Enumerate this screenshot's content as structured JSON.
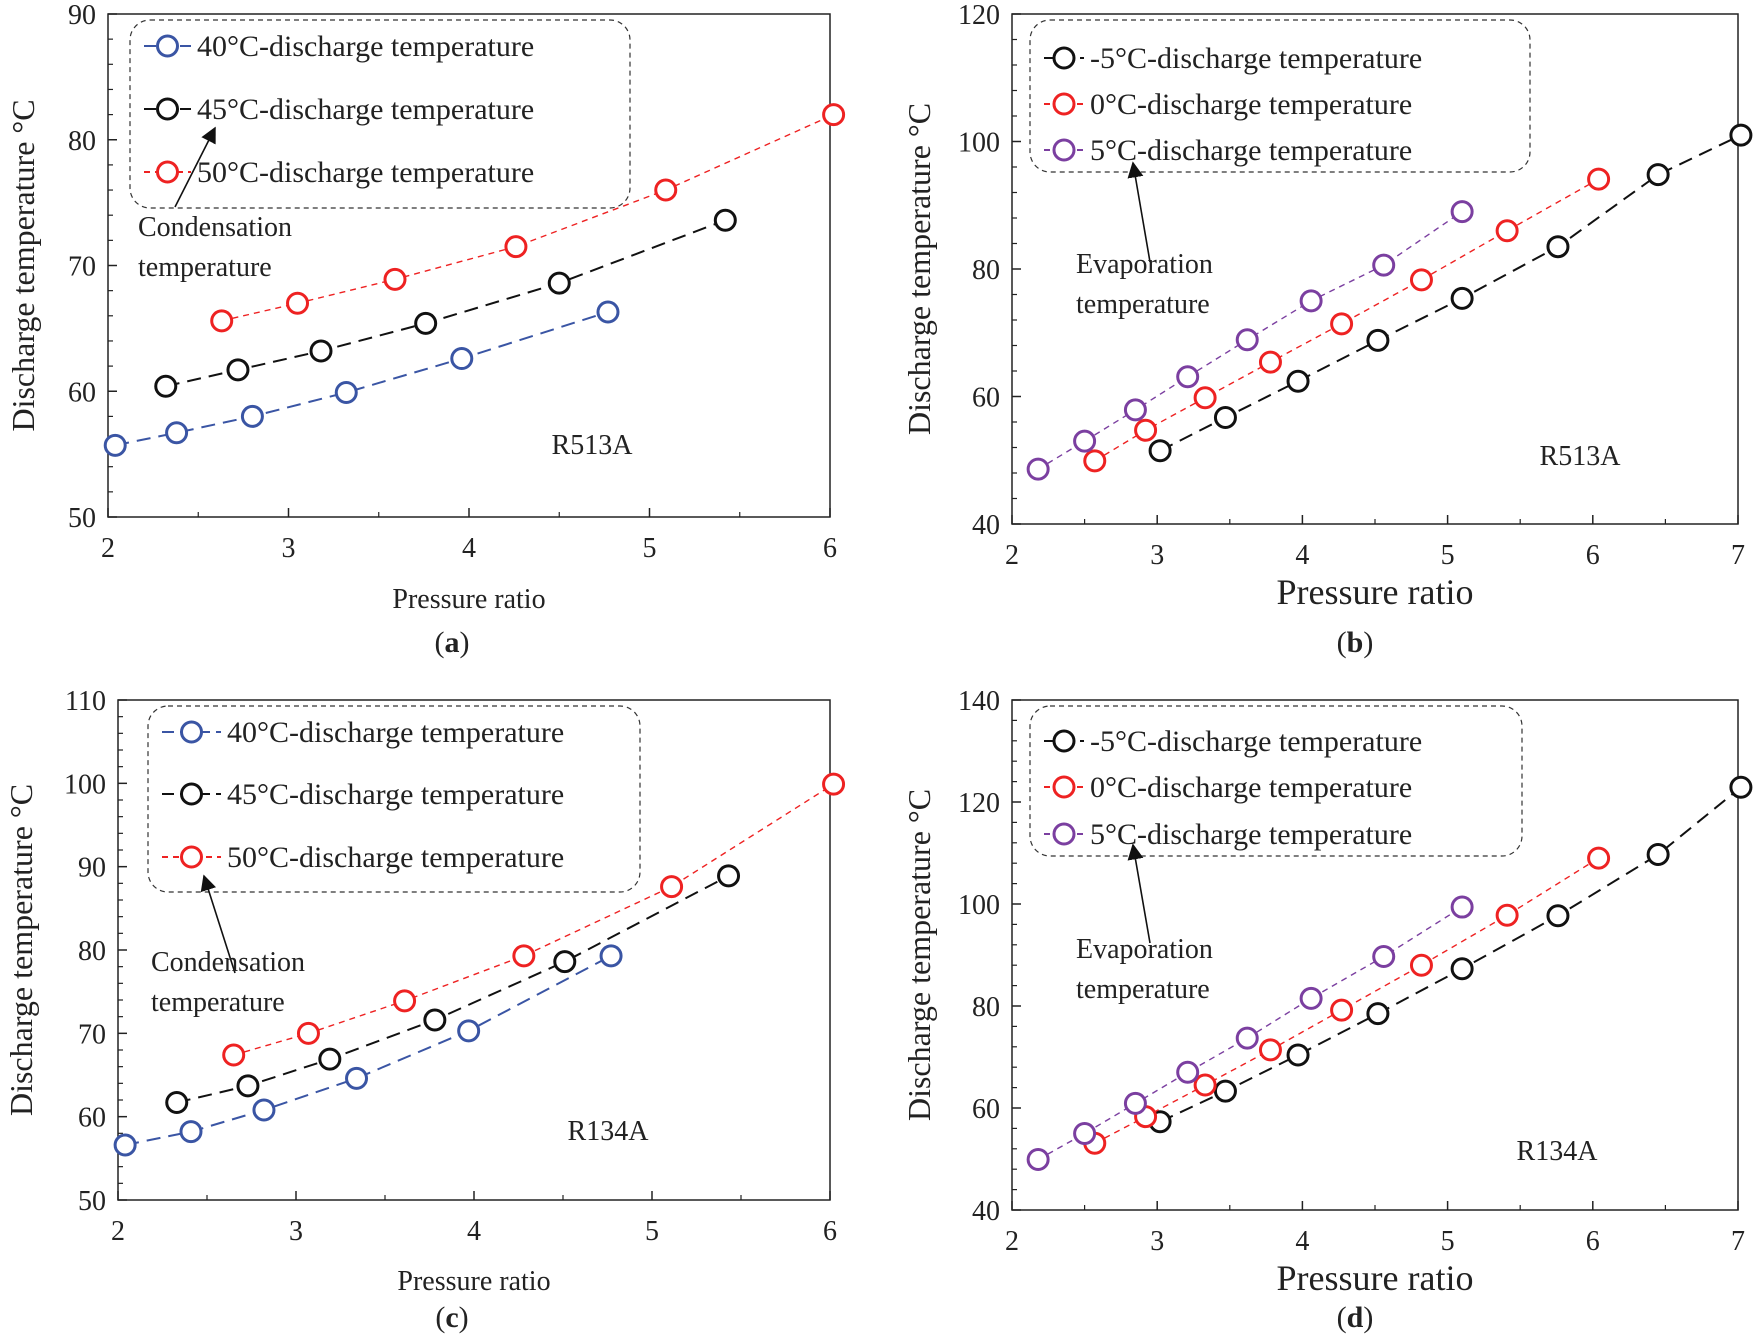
{
  "chart_data": [
    {
      "id": "a",
      "type": "line",
      "panel_label": "a",
      "xlabel": "Pressure ratio",
      "ylabel": "Discharge temperature °C",
      "xlim": [
        2,
        6
      ],
      "ylim": [
        50,
        90
      ],
      "xticks": [
        2,
        3,
        4,
        5,
        6
      ],
      "yticks": [
        50,
        60,
        70,
        80,
        90
      ],
      "fluid": "R513A",
      "note": [
        "Condensation",
        "temperature"
      ],
      "legend_placement": "top-left",
      "series": [
        {
          "name": "40°C-discharge temperature",
          "color": "#3a55a4",
          "dash": "long",
          "x": [
            2.04,
            2.38,
            2.8,
            3.32,
            3.96,
            4.77
          ],
          "y": [
            55.7,
            56.7,
            58.0,
            59.9,
            62.6,
            66.3
          ]
        },
        {
          "name": "45°C-discharge temperature",
          "color": "#111111",
          "dash": "long",
          "x": [
            2.32,
            2.72,
            3.18,
            3.76,
            4.5,
            5.42
          ],
          "y": [
            60.4,
            61.7,
            63.2,
            65.4,
            68.6,
            73.6
          ]
        },
        {
          "name": "50°C-discharge temperature",
          "color": "#ee2222",
          "dash": "short",
          "x": [
            2.63,
            3.05,
            3.59,
            4.26,
            5.09,
            6.02
          ],
          "y": [
            65.6,
            67.0,
            68.9,
            71.5,
            76.0,
            82.0
          ]
        }
      ]
    },
    {
      "id": "b",
      "type": "line",
      "panel_label": "b",
      "xlabel": "Pressure ratio",
      "ylabel": "Discharge temperature °C",
      "xlim": [
        2,
        7
      ],
      "ylim": [
        40,
        120
      ],
      "xticks": [
        2,
        3,
        4,
        5,
        6,
        7
      ],
      "yticks": [
        40,
        60,
        80,
        100,
        120
      ],
      "fluid": "R513A",
      "note": [
        "Evaporation",
        "temperature"
      ],
      "legend_placement": "top-left",
      "series": [
        {
          "name": "-5°C-discharge temperature",
          "color": "#111111",
          "dash": "long",
          "x": [
            3.02,
            3.47,
            3.97,
            4.52,
            5.1,
            5.76,
            6.45,
            7.02
          ],
          "y": [
            51.5,
            56.7,
            62.4,
            68.8,
            75.4,
            83.5,
            94.8,
            101.0
          ]
        },
        {
          "name": "0°C-discharge temperature",
          "color": "#ee2222",
          "dash": "short",
          "x": [
            2.57,
            2.92,
            3.33,
            3.78,
            4.27,
            4.82,
            5.41,
            6.04
          ],
          "y": [
            49.9,
            54.7,
            59.8,
            65.4,
            71.4,
            78.3,
            86.0,
            94.1
          ]
        },
        {
          "name": "5°C-discharge temperature",
          "color": "#7b3fa0",
          "dash": "short",
          "x": [
            2.18,
            2.5,
            2.85,
            3.21,
            3.62,
            4.06,
            4.56,
            5.1
          ],
          "y": [
            48.6,
            53.0,
            57.9,
            63.1,
            68.9,
            75.0,
            80.6,
            89.0
          ]
        }
      ]
    },
    {
      "id": "c",
      "type": "line",
      "panel_label": "c",
      "xlabel": "Pressure ratio",
      "ylabel": "Discharge temperature °C",
      "xlim": [
        2,
        6
      ],
      "ylim": [
        50,
        110
      ],
      "xticks": [
        2,
        3,
        4,
        5,
        6
      ],
      "yticks": [
        50,
        60,
        70,
        80,
        90,
        100,
        110
      ],
      "fluid": "R134A",
      "note": [
        "Condensation",
        "temperature"
      ],
      "legend_placement": "top-left",
      "series": [
        {
          "name": "40°C-discharge temperature",
          "color": "#3a55a4",
          "dash": "long",
          "x": [
            2.04,
            2.41,
            2.82,
            3.34,
            3.97,
            4.77
          ],
          "y": [
            56.6,
            58.2,
            60.8,
            64.6,
            70.3,
            79.3
          ]
        },
        {
          "name": "45°C-discharge temperature",
          "color": "#111111",
          "dash": "long",
          "x": [
            2.33,
            2.73,
            3.19,
            3.78,
            4.51,
            5.43
          ],
          "y": [
            61.7,
            63.7,
            66.9,
            71.6,
            78.6,
            88.9
          ]
        },
        {
          "name": "50°C-discharge temperature",
          "color": "#ee2222",
          "dash": "short",
          "x": [
            2.65,
            3.07,
            3.61,
            4.28,
            5.11,
            6.02
          ],
          "y": [
            67.4,
            70.0,
            73.9,
            79.3,
            87.6,
            99.9
          ]
        }
      ]
    },
    {
      "id": "d",
      "type": "line",
      "panel_label": "d",
      "xlabel": "Pressure ratio",
      "ylabel": "Discharge temperature °C",
      "xlim": [
        2,
        7
      ],
      "ylim": [
        40,
        140
      ],
      "xticks": [
        2,
        3,
        4,
        5,
        6,
        7
      ],
      "yticks": [
        40,
        60,
        80,
        100,
        120,
        140
      ],
      "fluid": "R134A",
      "note": [
        "Evaporation",
        "temperature"
      ],
      "legend_placement": "top-left",
      "series": [
        {
          "name": "-5°C-discharge temperature",
          "color": "#111111",
          "dash": "long",
          "x": [
            3.02,
            3.47,
            3.97,
            4.52,
            5.1,
            5.76,
            6.45,
            7.02
          ],
          "y": [
            57.3,
            63.3,
            70.4,
            78.5,
            87.3,
            97.7,
            109.7,
            122.9
          ]
        },
        {
          "name": "0°C-discharge temperature",
          "color": "#ee2222",
          "dash": "short",
          "x": [
            2.57,
            2.92,
            3.33,
            3.78,
            4.27,
            4.82,
            5.41,
            6.04
          ],
          "y": [
            53.1,
            58.3,
            64.5,
            71.4,
            79.2,
            88.0,
            97.8,
            109.0
          ]
        },
        {
          "name": "5°C-discharge temperature",
          "color": "#7b3fa0",
          "dash": "short",
          "x": [
            2.18,
            2.5,
            2.85,
            3.21,
            3.62,
            4.06,
            4.56,
            5.1
          ],
          "y": [
            49.9,
            55.0,
            60.9,
            67.0,
            73.7,
            81.5,
            89.7,
            99.4
          ]
        }
      ]
    }
  ]
}
